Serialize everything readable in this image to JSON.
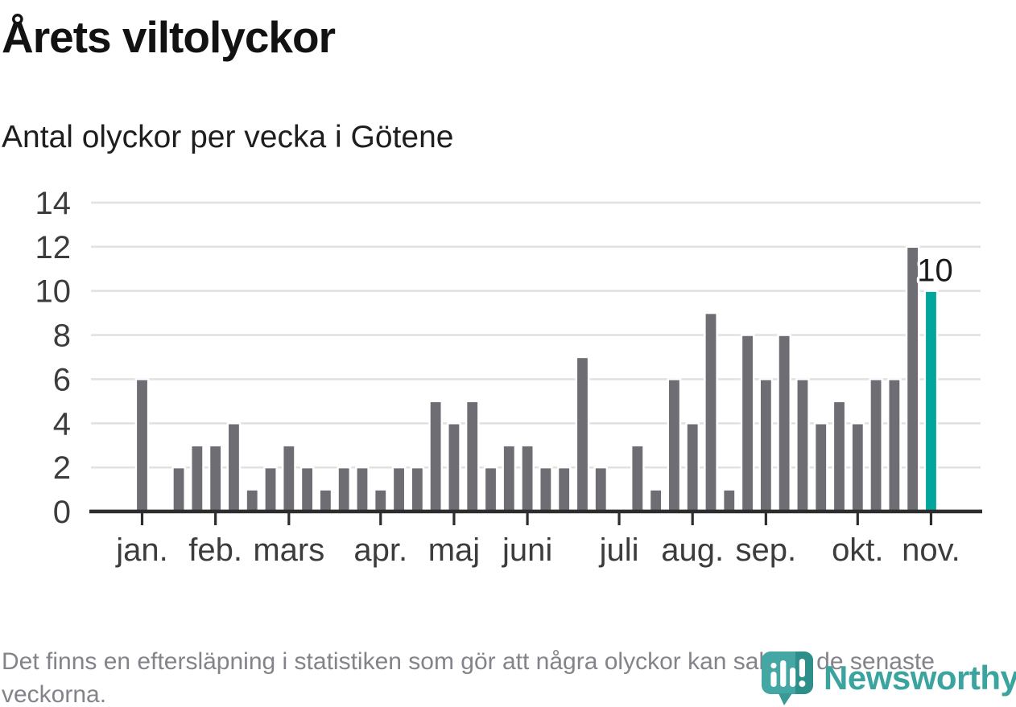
{
  "header": {
    "title": "Årets viltolyckor",
    "subtitle": "Antal olyckor per vecka i Götene"
  },
  "chart_data": {
    "type": "bar",
    "title": "Årets viltolyckor",
    "subtitle": "Antal olyckor per vecka i Götene",
    "x_unit": "vecka (week of year)",
    "weeks": [
      1,
      2,
      3,
      4,
      5,
      6,
      7,
      8,
      9,
      10,
      11,
      12,
      13,
      14,
      15,
      16,
      17,
      18,
      19,
      20,
      21,
      22,
      23,
      24,
      25,
      26,
      27,
      28,
      29,
      30,
      31,
      32,
      33,
      34,
      35,
      36,
      37,
      38,
      39,
      40,
      41,
      42,
      43,
      44
    ],
    "values": [
      6,
      0,
      2,
      3,
      3,
      4,
      1,
      2,
      3,
      2,
      1,
      2,
      2,
      1,
      2,
      2,
      5,
      4,
      5,
      2,
      3,
      3,
      2,
      2,
      7,
      2,
      0,
      3,
      1,
      6,
      4,
      9,
      1,
      8,
      6,
      8,
      6,
      4,
      5,
      4,
      6,
      6,
      12,
      10
    ],
    "highlight": {
      "week": 44,
      "value": 10,
      "label": "10"
    },
    "months": [
      {
        "label": "jan.",
        "week": 1
      },
      {
        "label": "feb.",
        "week": 5
      },
      {
        "label": "mars",
        "week": 9
      },
      {
        "label": "apr.",
        "week": 14
      },
      {
        "label": "maj",
        "week": 18
      },
      {
        "label": "juni",
        "week": 22
      },
      {
        "label": "juli",
        "week": 27
      },
      {
        "label": "aug.",
        "week": 31
      },
      {
        "label": "sep.",
        "week": 35
      },
      {
        "label": "okt.",
        "week": 40
      },
      {
        "label": "nov.",
        "week": 44
      }
    ],
    "y_ticks": [
      0,
      2,
      4,
      6,
      8,
      10,
      12,
      14
    ],
    "ylim": [
      0,
      14
    ],
    "grid": true,
    "legend": "none",
    "colors": {
      "bar": "#6e6d73",
      "highlight": "#00a69c",
      "gridline": "#e2e2e2",
      "axis": "#2d2d2d",
      "axis_text": "#3c3c3c",
      "data_label": "#191919"
    }
  },
  "footer": {
    "note": "Det finns en eftersläpning i statistiken som gör att några olyckor kan saknas de senaste veckorna.",
    "brand": "Newsworthy",
    "brand_color": "#3ba49f"
  }
}
